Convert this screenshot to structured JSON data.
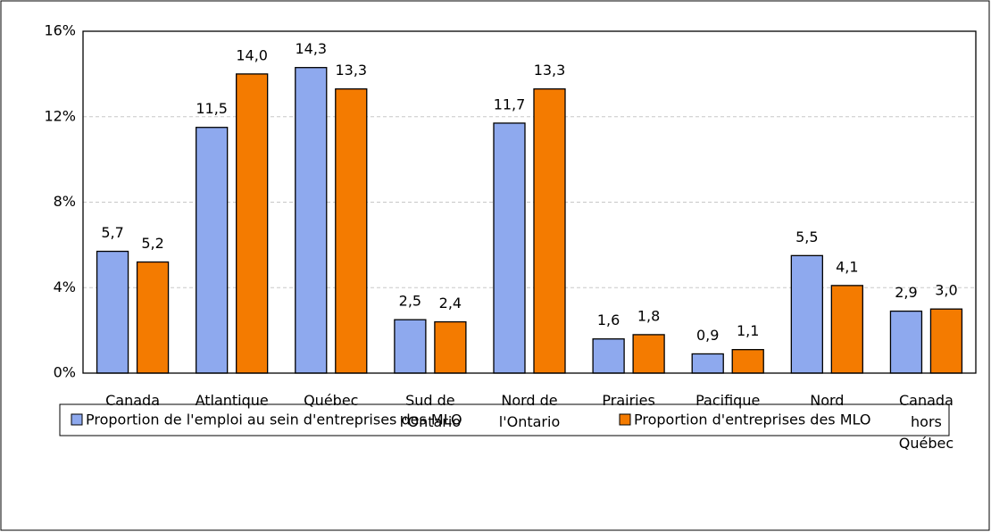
{
  "chart_data": {
    "type": "bar",
    "categories": [
      "Canada",
      "Atlantique",
      "Québec",
      "Sud de\nl'Ontario",
      "Nord de\nl'Ontario",
      "Prairies",
      "Pacifique",
      "Nord",
      "Canada\nhors\nQuébec"
    ],
    "series": [
      {
        "name": "Proportion de l'emploi au sein d'entreprises des MLO",
        "color": "#8EA9EE",
        "values": [
          5.7,
          11.5,
          14.3,
          2.5,
          11.7,
          1.6,
          0.9,
          5.5,
          2.9
        ],
        "value_labels": [
          "5,7",
          "11,5",
          "14,3",
          "2,5",
          "11,7",
          "1,6",
          "0,9",
          "5,5",
          "2,9"
        ]
      },
      {
        "name": "Proportion d'entreprises des MLO",
        "color": "#F47B00",
        "values": [
          5.2,
          14.0,
          13.3,
          2.4,
          13.3,
          1.8,
          1.1,
          4.1,
          3.0
        ],
        "value_labels": [
          "5,2",
          "14,0",
          "13,3",
          "2,4",
          "13,3",
          "1,8",
          "1,1",
          "4,1",
          "3,0"
        ]
      }
    ],
    "ylim": [
      0,
      16
    ],
    "yticks": [
      {
        "value": 0,
        "label": "0%"
      },
      {
        "value": 4,
        "label": "4%"
      },
      {
        "value": 8,
        "label": "8%"
      },
      {
        "value": 12,
        "label": "12%"
      },
      {
        "value": 16,
        "label": "16%"
      }
    ],
    "grid": true,
    "legend": "bottom"
  }
}
